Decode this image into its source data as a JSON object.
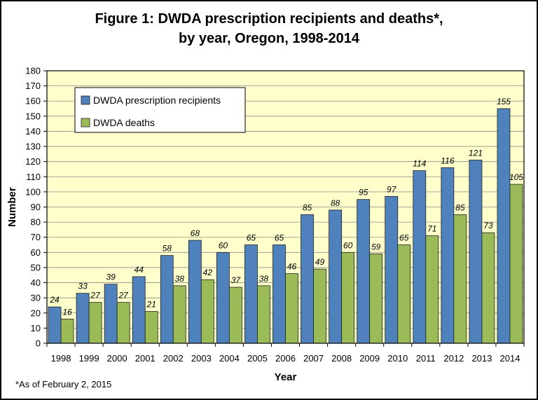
{
  "chart_data": {
    "type": "bar",
    "title_line1": "Figure 1: DWDA prescription recipients and deaths*,",
    "title_line2": "by year, Oregon, 1998-2014",
    "xlabel": "Year",
    "ylabel": "Number",
    "ylim": [
      0,
      180
    ],
    "ytick_step": 10,
    "grid": true,
    "legend_position": "top-left",
    "categories": [
      "1998",
      "1999",
      "2000",
      "2001",
      "2002",
      "2003",
      "2004",
      "2005",
      "2006",
      "2007",
      "2008",
      "2009",
      "2010",
      "2011",
      "2012",
      "2013",
      "2014"
    ],
    "series": [
      {
        "name": "DWDA prescription recipients",
        "color": "#4f81bd",
        "values": [
          24,
          33,
          39,
          44,
          58,
          68,
          60,
          65,
          65,
          85,
          88,
          95,
          97,
          114,
          116,
          121,
          155
        ]
      },
      {
        "name": "DWDA deaths",
        "color": "#9bbb59",
        "values": [
          16,
          27,
          27,
          21,
          38,
          42,
          37,
          38,
          46,
          49,
          60,
          59,
          65,
          71,
          85,
          73,
          105
        ]
      }
    ],
    "plot_background": "#ffffcc",
    "footnote": "*As of February 2, 2015"
  }
}
